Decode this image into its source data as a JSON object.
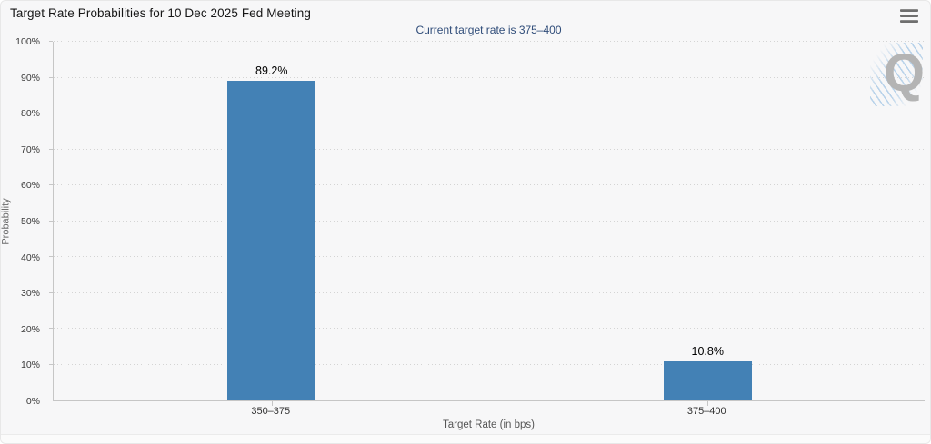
{
  "header": {
    "title": "Target Rate Probabilities for 10 Dec 2025 Fed Meeting",
    "menu_icon": "hamburger-icon"
  },
  "subtitle": "Current target rate is 375–400",
  "watermark_letter": "Q",
  "colors": {
    "bar": "#4381b5",
    "subtitle_text": "#2f4c79",
    "grid": "#d4d4d4",
    "axis": "#c6c6c6",
    "watermark_gray": "#b4b4b4",
    "watermark_blue": "#a9cbe4"
  },
  "chart_data": {
    "type": "bar",
    "title": "Target Rate Probabilities for 10 Dec 2025 Fed Meeting",
    "subtitle": "Current target rate is 375–400",
    "categories": [
      "350–375",
      "375–400"
    ],
    "values": [
      89.2,
      10.8
    ],
    "value_labels": [
      "89.2%",
      "10.8%"
    ],
    "xlabel": "Target Rate (in bps)",
    "ylabel": "Probability",
    "ylim": [
      0,
      100
    ],
    "ytick_step": 10,
    "ytick_labels": [
      "0%",
      "10%",
      "20%",
      "30%",
      "40%",
      "50%",
      "60%",
      "70%",
      "80%",
      "90%",
      "100%"
    ],
    "grid": "dotted-horizontal",
    "legend": "none",
    "bar_color": "#4381b5"
  }
}
